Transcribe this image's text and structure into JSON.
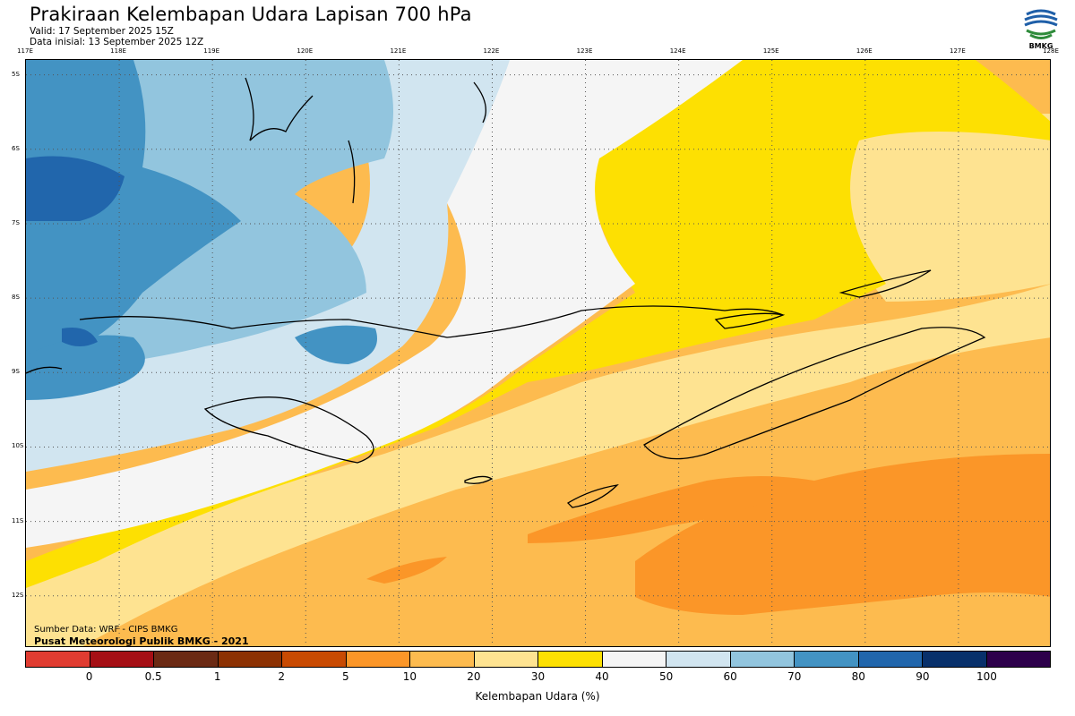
{
  "header": {
    "title": "Prakiraan Kelembapan Udara Lapisan 700 hPa",
    "valid": "Valid: 17 September 2025 15Z",
    "initial": "Data inisial: 13 September 2025 12Z"
  },
  "logo": {
    "text": "BMKG",
    "icon": "bmkg-logo-icon"
  },
  "axes": {
    "longitudes": [
      "117E",
      "118E",
      "119E",
      "120E",
      "121E",
      "122E",
      "123E",
      "124E",
      "125E",
      "126E",
      "127E",
      "128E"
    ],
    "latitudes": [
      "5S",
      "6S",
      "7S",
      "8S",
      "9S",
      "10S",
      "11S",
      "12S"
    ],
    "lon_range": [
      117,
      128
    ],
    "lat_range": [
      -4.8,
      -12.7
    ],
    "grid": "dotted"
  },
  "credits": {
    "source": "Sumber Data: WRF - CIPS BMKG",
    "center": "Pusat Meteorologi Publik BMKG - 2021"
  },
  "legend": {
    "label": "Kelembapan Udara (%)",
    "ticks": [
      "0",
      "0.5",
      "1",
      "2",
      "5",
      "10",
      "20",
      "30",
      "40",
      "50",
      "60",
      "70",
      "80",
      "90",
      "100"
    ],
    "colors": [
      "#e03c31",
      "#a50f15",
      "#6b2a14",
      "#8c3103",
      "#c84a02",
      "#fb9628",
      "#fdbb4f",
      "#fee391",
      "#fde002",
      "#f5f5f5",
      "#d1e5f0",
      "#92c5de",
      "#4393c3",
      "#2166ac",
      "#08306b",
      "#2d004b"
    ]
  },
  "map": {
    "colors": {
      "c30_40": "#fde002",
      "c40_50": "#f5f5f5",
      "c50_60": "#d1e5f0",
      "c60_70": "#92c5de",
      "c70_80": "#4393c3",
      "c80_90": "#2166ac",
      "c20_30": "#fee391",
      "c10_20": "#fdbb4f",
      "c5_10": "#fb9628"
    }
  }
}
